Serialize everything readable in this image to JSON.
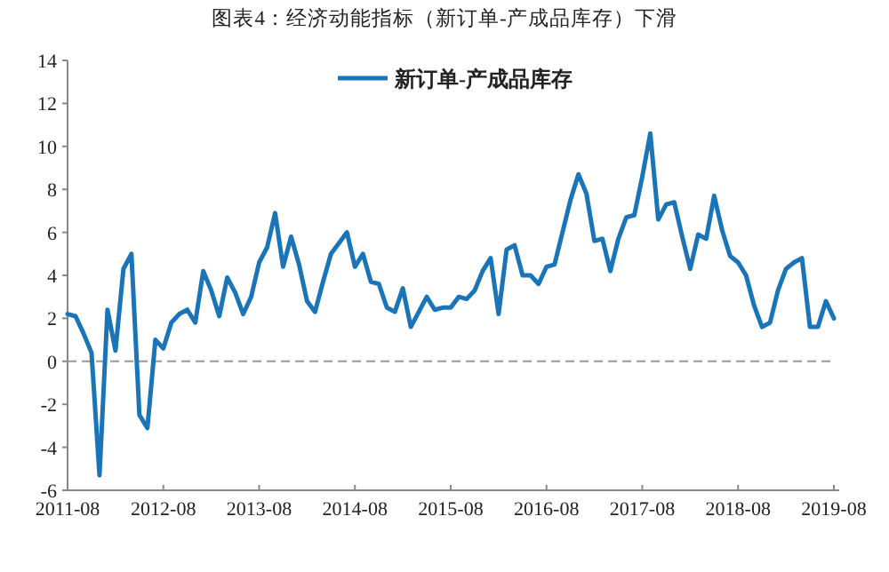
{
  "chart_data": {
    "type": "line",
    "title": "图表4：经济动能指标（新订单-产成品库存）下滑",
    "x": [
      "2011-08",
      "2011-09",
      "2011-10",
      "2011-11",
      "2011-12",
      "2012-01",
      "2012-02",
      "2012-03",
      "2012-04",
      "2012-05",
      "2012-06",
      "2012-07",
      "2012-08",
      "2012-09",
      "2012-10",
      "2012-11",
      "2012-12",
      "2013-01",
      "2013-02",
      "2013-03",
      "2013-04",
      "2013-05",
      "2013-06",
      "2013-07",
      "2013-08",
      "2013-09",
      "2013-10",
      "2013-11",
      "2013-12",
      "2014-01",
      "2014-02",
      "2014-03",
      "2014-04",
      "2014-05",
      "2014-06",
      "2014-07",
      "2014-08",
      "2014-09",
      "2014-10",
      "2014-11",
      "2014-12",
      "2015-01",
      "2015-02",
      "2015-03",
      "2015-04",
      "2015-05",
      "2015-06",
      "2015-07",
      "2015-08",
      "2015-09",
      "2015-10",
      "2015-11",
      "2015-12",
      "2016-01",
      "2016-02",
      "2016-03",
      "2016-04",
      "2016-05",
      "2016-06",
      "2016-07",
      "2016-08",
      "2016-09",
      "2016-10",
      "2016-11",
      "2016-12",
      "2017-01",
      "2017-02",
      "2017-03",
      "2017-04",
      "2017-05",
      "2017-06",
      "2017-07",
      "2017-08",
      "2017-09",
      "2017-10",
      "2017-11",
      "2017-12",
      "2018-01",
      "2018-02",
      "2018-03",
      "2018-04",
      "2018-05",
      "2018-06",
      "2018-07",
      "2018-08",
      "2018-09",
      "2018-10",
      "2018-11",
      "2018-12",
      "2019-01",
      "2019-02",
      "2019-03",
      "2019-04",
      "2019-05",
      "2019-06",
      "2019-07",
      "2019-08"
    ],
    "series": [
      {
        "name": "新订单-产成品库存",
        "color": "#1a75b8",
        "values": [
          2.2,
          2.1,
          1.3,
          0.4,
          -5.3,
          2.4,
          0.5,
          4.3,
          5.0,
          -2.5,
          -3.1,
          1.0,
          0.6,
          1.8,
          2.2,
          2.4,
          1.8,
          4.2,
          3.3,
          2.1,
          3.9,
          3.2,
          2.2,
          3.0,
          4.6,
          5.3,
          6.9,
          4.4,
          5.8,
          4.5,
          2.8,
          2.3,
          3.7,
          5.0,
          5.5,
          6.0,
          4.4,
          5.0,
          3.7,
          3.6,
          2.5,
          2.3,
          3.4,
          1.6,
          2.3,
          3.0,
          2.4,
          2.5,
          2.5,
          3.0,
          2.9,
          3.3,
          4.2,
          4.8,
          2.2,
          5.2,
          5.4,
          4.0,
          4.0,
          3.6,
          4.4,
          4.5,
          6.0,
          7.5,
          8.7,
          7.8,
          5.6,
          5.7,
          4.2,
          5.7,
          6.7,
          6.8,
          8.6,
          10.6,
          6.6,
          7.3,
          7.4,
          5.8,
          4.3,
          5.9,
          5.7,
          7.7,
          6.1,
          4.9,
          4.6,
          4.0,
          2.6,
          1.6,
          1.8,
          3.3,
          4.3,
          4.6,
          4.8,
          1.6,
          1.6,
          2.8,
          2.0
        ]
      }
    ],
    "xlim": [
      "2011-08",
      "2019-08"
    ],
    "xticks": [
      "2011-08",
      "2012-08",
      "2013-08",
      "2014-08",
      "2015-08",
      "2016-08",
      "2017-08",
      "2018-08",
      "2019-08"
    ],
    "ylim": [
      -6,
      14
    ],
    "yticks": [
      -6,
      -4,
      -2,
      0,
      2,
      4,
      6,
      8,
      10,
      12,
      14
    ],
    "ref_lines": [
      {
        "axis": "y",
        "value": 0,
        "color": "#999999",
        "line_style": "dashed"
      }
    ],
    "legend": "top"
  }
}
